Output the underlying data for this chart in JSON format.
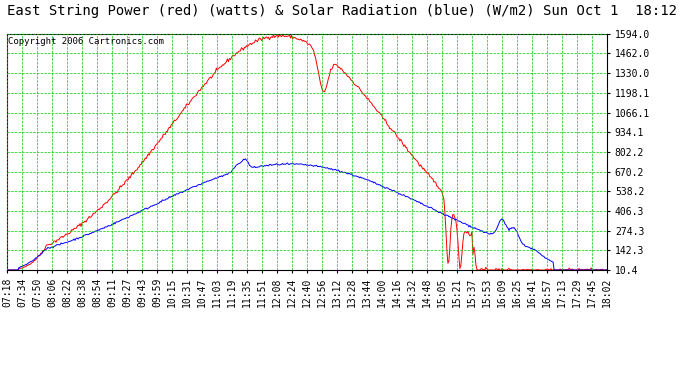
{
  "title": "East String Power (red) (watts) & Solar Radiation (blue) (W/m2) Sun Oct 1  18:12",
  "copyright": "Copyright 2006 Cartronics.com",
  "background_color": "#ffffff",
  "plot_bg_color": "#ffffff",
  "grid_color": "#00cc00",
  "yticks": [
    10.4,
    142.3,
    274.3,
    406.3,
    538.2,
    670.2,
    802.2,
    934.1,
    1066.1,
    1198.1,
    1330.0,
    1462.0,
    1594.0
  ],
  "ymin": 10.4,
  "ymax": 1594.0,
  "red_color": "#ff0000",
  "blue_color": "#0000ff",
  "title_fontsize": 10,
  "copyright_fontsize": 6.5,
  "tick_fontsize": 7,
  "xtick_labels": [
    "07:18",
    "07:34",
    "07:50",
    "08:06",
    "08:22",
    "08:38",
    "08:54",
    "09:11",
    "09:27",
    "09:43",
    "09:59",
    "10:15",
    "10:31",
    "10:47",
    "11:03",
    "11:19",
    "11:35",
    "11:51",
    "12:08",
    "12:24",
    "12:40",
    "12:56",
    "13:12",
    "13:28",
    "13:44",
    "14:00",
    "14:16",
    "14:32",
    "14:48",
    "15:05",
    "15:21",
    "15:37",
    "15:53",
    "16:09",
    "16:25",
    "16:41",
    "16:57",
    "17:13",
    "17:29",
    "17:45",
    "18:02"
  ],
  "n_points": 600
}
